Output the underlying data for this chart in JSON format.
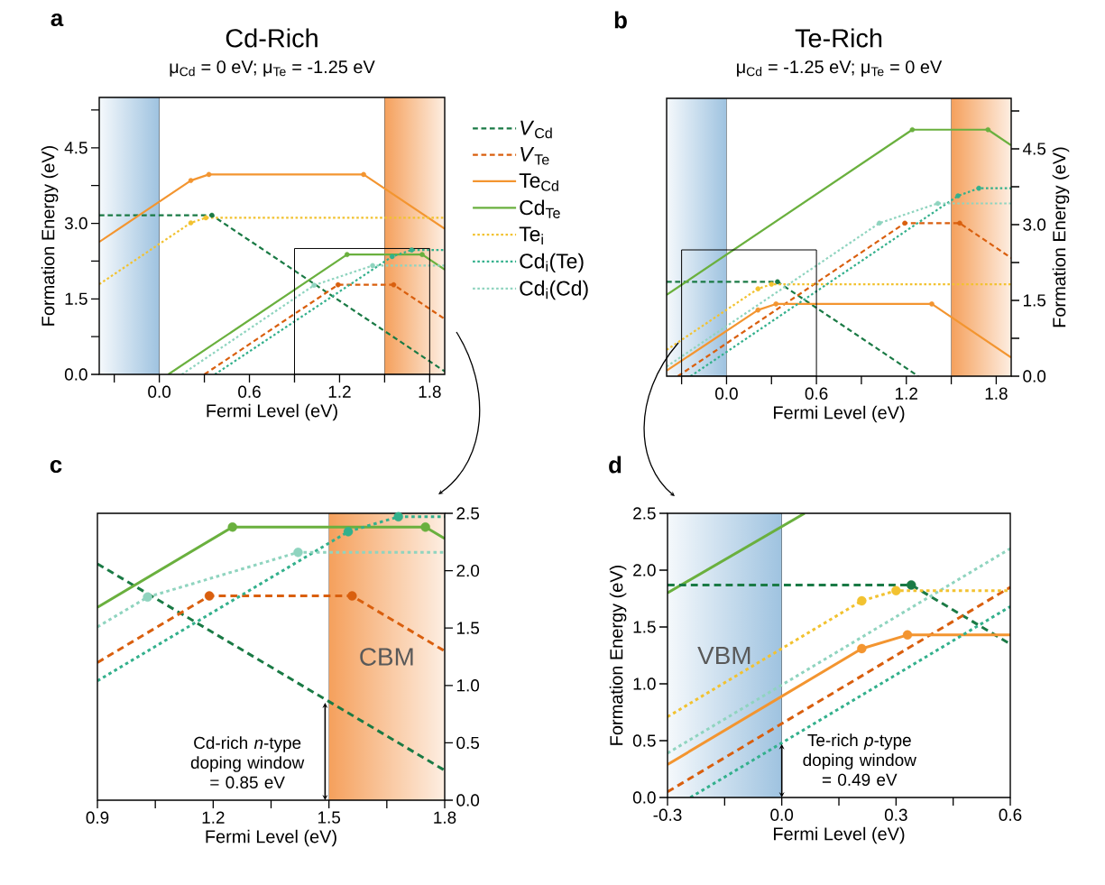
{
  "chart_data": [
    {
      "type": "line",
      "title": "Cd-Rich",
      "subtitle": "μ$_{Cd}$ = 0 eV; μ$_{Te}$ = -1.25 eV",
      "xlabel": "Fermi Level (eV)",
      "ylabel": "Formation Energy (eV)",
      "annotations": [
        "a"
      ],
      "xlim": [
        -0.4,
        1.9
      ],
      "ylim": [
        0,
        5.5
      ],
      "xticks": [
        {
          "value": -0.3,
          "label": null
        },
        {
          "value": 0,
          "label": "0.0"
        },
        {
          "value": 0.3,
          "label": null
        },
        {
          "value": 0.6,
          "label": "0.6"
        },
        {
          "value": 0.9,
          "label": null
        },
        {
          "value": 1.2,
          "label": "1.2"
        },
        {
          "value": 1.5,
          "label": null
        },
        {
          "value": 1.8,
          "label": "1.8"
        }
      ],
      "yticks": [
        {
          "value": 0,
          "label": "0.0"
        },
        {
          "value": 0.75,
          "label": null
        },
        {
          "value": 1.5,
          "label": "1.5"
        },
        {
          "value": 2.25,
          "label": null
        },
        {
          "value": 3,
          "label": "3.0"
        },
        {
          "value": 3.75,
          "label": null
        },
        {
          "value": 4.5,
          "label": "4.5"
        },
        {
          "value": 5.25,
          "label": null
        }
      ],
      "bands": [
        {
          "axis": "x",
          "from": -0.4,
          "to": 0,
          "color": "#9fc3e0"
        },
        {
          "axis": "x",
          "from": 1.5,
          "to": 1.9,
          "color": "#f5a05c"
        }
      ],
      "legend": "right",
      "series": [
        {
          "name": "*V*$_{Cd}$",
          "color": "#1a7a45",
          "line_style": "dashed",
          "x": [
            -0.4,
            0.35,
            1.9
          ],
          "values": [
            3.16,
            3.16,
            0.06
          ]
        },
        {
          "name": "*V*$_{Te}$",
          "color": "#d95f0e",
          "line_style": "dashed",
          "x": [
            0.3,
            1.19,
            1.56,
            1.9
          ],
          "values": [
            0,
            1.78,
            1.78,
            1.1
          ]
        },
        {
          "name": "Te$_{Cd}$",
          "color": "#f39530",
          "line_style": "solid",
          "x": [
            -0.4,
            0.21,
            0.33,
            1.36,
            1.9
          ],
          "values": [
            2.63,
            3.85,
            3.97,
            3.97,
            2.89
          ]
        },
        {
          "name": "Cd$_{Te}$",
          "color": "#6ab03e",
          "line_style": "solid",
          "x": [
            0.06,
            1.25,
            1.75,
            1.9
          ],
          "values": [
            0,
            2.38,
            2.38,
            2.08
          ]
        },
        {
          "name": "Te$_{i}$",
          "color": "#f2c230",
          "line_style": "dotted",
          "x": [
            -0.4,
            0.21,
            0.31,
            1.9
          ],
          "values": [
            1.79,
            3.01,
            3.11,
            3.11
          ]
        },
        {
          "name": "Cd$_{i}$(Te)",
          "color": "#33b08c",
          "line_style": "dotted",
          "x": [
            0.37,
            1.55,
            1.68,
            1.9
          ],
          "values": [
            0,
            2.34,
            2.47,
            2.47
          ]
        },
        {
          "name": "Cd$_{i}$(Cd)",
          "color": "#8fd4bf",
          "line_style": "dotted",
          "x": [
            0.15,
            1.03,
            1.42,
            1.9
          ],
          "values": [
            0,
            1.77,
            2.16,
            2.16
          ]
        },
        {
          "type": "scatter",
          "marker": "circle",
          "x": [
            0.35,
            1.19,
            1.56,
            0.21,
            0.33,
            1.36,
            1.25,
            1.75,
            0.21,
            0.31,
            1.55,
            1.68,
            1.03,
            1.42
          ],
          "values": [
            3.16,
            1.78,
            1.78,
            3.85,
            3.97,
            3.97,
            2.38,
            2.38,
            3.01,
            3.11,
            2.34,
            2.47,
            1.77,
            2.16
          ],
          "colors": [
            "#1a7a45",
            "#d95f0e",
            "#d95f0e",
            "#f39530",
            "#f39530",
            "#f39530",
            "#6ab03e",
            "#6ab03e",
            "#f2c230",
            "#f2c230",
            "#33b08c",
            "#33b08c",
            "#8fd4bf",
            "#8fd4bf"
          ]
        }
      ]
    },
    {
      "type": "line",
      "title": "Te-Rich",
      "subtitle": "μ$_{Cd}$ = -1.25 eV; μ$_{Te}$ = 0 eV",
      "xlabel": "Fermi Level (eV)",
      "ylabel": "Formation Energy (eV)",
      "annotations": [
        "b"
      ],
      "xlim": [
        -0.4,
        1.9
      ],
      "ylim": [
        0,
        5.5
      ],
      "xticks": [
        {
          "value": -0.3,
          "label": null
        },
        {
          "value": 0,
          "label": "0.0"
        },
        {
          "value": 0.3,
          "label": null
        },
        {
          "value": 0.6,
          "label": "0.6"
        },
        {
          "value": 0.9,
          "label": null
        },
        {
          "value": 1.2,
          "label": "1.2"
        },
        {
          "value": 1.5,
          "label": null
        },
        {
          "value": 1.8,
          "label": "1.8"
        }
      ],
      "yticks": [
        {
          "value": 0,
          "label": "0.0"
        },
        {
          "value": 0.75,
          "label": null
        },
        {
          "value": 1.5,
          "label": "1.5"
        },
        {
          "value": 2.25,
          "label": null
        },
        {
          "value": 3,
          "label": "3.0"
        },
        {
          "value": 3.75,
          "label": null
        },
        {
          "value": 4.5,
          "label": "4.5"
        },
        {
          "value": 5.25,
          "label": null
        }
      ],
      "bands": [
        {
          "axis": "x",
          "from": -0.4,
          "to": 0,
          "color": "#9fc3e0"
        },
        {
          "axis": "x",
          "from": 1.5,
          "to": 1.9,
          "color": "#f5a05c"
        }
      ],
      "series": [
        {
          "color": "#1a7a45",
          "line_style": "dashed",
          "x": [
            -0.4,
            0.34,
            1.28
          ],
          "values": [
            1.87,
            1.87,
            0
          ]
        },
        {
          "color": "#d95f0e",
          "line_style": "dashed",
          "x": [
            -0.325,
            1.19,
            1.556,
            1.9
          ],
          "values": [
            0,
            3.03,
            3.03,
            2.34
          ]
        },
        {
          "color": "#f39530",
          "line_style": "solid",
          "x": [
            -0.4,
            0.21,
            0.33,
            1.37,
            1.9
          ],
          "values": [
            0.11,
            1.31,
            1.43,
            1.43,
            0.37
          ]
        },
        {
          "color": "#6ab03e",
          "line_style": "solid",
          "x": [
            -0.4,
            1.24,
            1.745,
            1.9
          ],
          "values": [
            1.61,
            4.88,
            4.88,
            4.57
          ]
        },
        {
          "color": "#f2c230",
          "line_style": "dotted",
          "x": [
            -0.4,
            0.21,
            0.3,
            1.9
          ],
          "values": [
            0.52,
            1.73,
            1.82,
            1.82
          ]
        },
        {
          "color": "#33b08c",
          "line_style": "dotted",
          "x": [
            -0.24,
            1.545,
            1.684,
            1.9
          ],
          "values": [
            0,
            3.57,
            3.72,
            3.72
          ]
        },
        {
          "color": "#8fd4bf",
          "line_style": "dotted",
          "x": [
            -0.4,
            1.02,
            1.41,
            1.9
          ],
          "values": [
            0.19,
            3.03,
            3.42,
            3.42
          ]
        },
        {
          "type": "scatter",
          "marker": "circle",
          "x": [
            0.34,
            1.19,
            1.556,
            0.21,
            0.33,
            1.37,
            1.24,
            1.745,
            0.21,
            0.3,
            1.545,
            1.684,
            1.02,
            1.41
          ],
          "values": [
            1.87,
            3.03,
            3.03,
            1.31,
            1.43,
            1.43,
            4.88,
            4.88,
            1.73,
            1.82,
            3.57,
            3.72,
            3.03,
            3.42
          ],
          "colors": [
            "#1a7a45",
            "#d95f0e",
            "#d95f0e",
            "#f39530",
            "#f39530",
            "#f39530",
            "#6ab03e",
            "#6ab03e",
            "#f2c230",
            "#f2c230",
            "#33b08c",
            "#33b08c",
            "#8fd4bf",
            "#8fd4bf"
          ]
        }
      ]
    },
    {
      "type": "line",
      "annotations": [
        "c",
        {
          "text": "Cd-rich *n*-type doping window = 0.85 eV",
          "x": 1.49,
          "y": 0.85
        }
      ],
      "xlabel": "Fermi Level (eV)",
      "xlim": [
        0.9,
        1.8
      ],
      "ylim": [
        0,
        2.5
      ],
      "xticks": [
        {
          "value": 0.9,
          "label": "0.9"
        },
        {
          "value": 1.05,
          "label": null
        },
        {
          "value": 1.2,
          "label": "1.2"
        },
        {
          "value": 1.35,
          "label": null
        },
        {
          "value": 1.5,
          "label": "1.5"
        },
        {
          "value": 1.65,
          "label": null
        },
        {
          "value": 1.8,
          "label": "1.8"
        }
      ],
      "yticks": [
        {
          "value": 0,
          "label": "0.0"
        },
        {
          "value": 0.5,
          "label": "0.5"
        },
        {
          "value": 1,
          "label": "1.0"
        },
        {
          "value": 1.5,
          "label": "1.5"
        },
        {
          "value": 2,
          "label": "2.0"
        },
        {
          "value": 2.5,
          "label": "2.5"
        }
      ],
      "bands": [
        {
          "axis": "x",
          "from": 1.5,
          "to": 1.8,
          "label": "CBM",
          "color": "#f5a05c"
        }
      ],
      "series": [
        {
          "color": "#1a7a45",
          "line_style": "dashed",
          "x": [
            0.9,
            1.8
          ],
          "values": [
            2.06,
            0.26
          ]
        },
        {
          "color": "#d95f0e",
          "line_style": "dashed",
          "x": [
            0.9,
            1.19,
            1.56,
            1.8
          ],
          "values": [
            1.2,
            1.78,
            1.78,
            1.3
          ]
        },
        {
          "color": "#6ab03e",
          "line_style": "solid",
          "x": [
            0.9,
            1.25,
            1.75,
            1.8
          ],
          "values": [
            1.68,
            2.38,
            2.38,
            2.28
          ]
        },
        {
          "color": "#33b08c",
          "line_style": "dotted",
          "x": [
            0.9,
            1.55,
            1.68,
            1.8
          ],
          "values": [
            1.04,
            2.34,
            2.47,
            2.47
          ]
        },
        {
          "color": "#8fd4bf",
          "line_style": "dotted",
          "x": [
            0.9,
            1.03,
            1.42,
            1.8
          ],
          "values": [
            1.51,
            1.77,
            2.16,
            2.16
          ]
        },
        {
          "type": "scatter",
          "marker": "circle",
          "x": [
            1.19,
            1.56,
            1.25,
            1.75,
            1.55,
            1.68,
            1.03,
            1.42
          ],
          "values": [
            1.78,
            1.78,
            2.38,
            2.38,
            2.34,
            2.47,
            1.77,
            2.16
          ],
          "colors": [
            "#d95f0e",
            "#d95f0e",
            "#6ab03e",
            "#6ab03e",
            "#33b08c",
            "#33b08c",
            "#8fd4bf",
            "#8fd4bf"
          ]
        }
      ]
    },
    {
      "type": "line",
      "annotations": [
        "d",
        {
          "text": "Te-rich *p*-type doping window = 0.49 eV",
          "x": 0.0,
          "y": 0.47
        }
      ],
      "xlabel": "Fermi Level (eV)",
      "ylabel": "Formation Energy (eV)",
      "xlim": [
        -0.3,
        0.6
      ],
      "ylim": [
        0,
        2.5
      ],
      "xticks": [
        {
          "value": -0.3,
          "label": "-0.3"
        },
        {
          "value": -0.15,
          "label": null
        },
        {
          "value": 0,
          "label": "0.0"
        },
        {
          "value": 0.15,
          "label": null
        },
        {
          "value": 0.3,
          "label": "0.3"
        },
        {
          "value": 0.45,
          "label": null
        },
        {
          "value": 0.6,
          "label": "0.6"
        }
      ],
      "yticks": [
        {
          "value": 0,
          "label": "0.0"
        },
        {
          "value": 0.5,
          "label": "0.5"
        },
        {
          "value": 1,
          "label": "1.0"
        },
        {
          "value": 1.5,
          "label": "1.5"
        },
        {
          "value": 2,
          "label": "2.0"
        },
        {
          "value": 2.5,
          "label": "2.5"
        }
      ],
      "bands": [
        {
          "axis": "x",
          "from": -0.3,
          "to": 0,
          "label": "VBM",
          "color": "#9fc3e0"
        }
      ],
      "series": [
        {
          "color": "#6ab03e",
          "line_style": "solid",
          "x": [
            -0.3,
            0.06
          ],
          "values": [
            1.8,
            2.5
          ]
        },
        {
          "color": "#1a7a45",
          "line_style": "dashed",
          "x": [
            -0.3,
            0.34,
            0.6
          ],
          "values": [
            1.87,
            1.87,
            1.35
          ]
        },
        {
          "color": "#d95f0e",
          "line_style": "dashed",
          "x": [
            -0.3,
            0.6
          ],
          "values": [
            0.05,
            1.85
          ]
        },
        {
          "color": "#f39530",
          "line_style": "solid",
          "x": [
            -0.3,
            0.21,
            0.33,
            0.6
          ],
          "values": [
            0.29,
            1.31,
            1.43,
            1.43
          ]
        },
        {
          "color": "#8fd4bf",
          "line_style": "dotted",
          "x": [
            -0.3,
            0.6
          ],
          "values": [
            0.39,
            2.19
          ]
        },
        {
          "color": "#33b08c",
          "line_style": "dotted",
          "x": [
            -0.24,
            0.6
          ],
          "values": [
            0,
            1.68
          ]
        },
        {
          "color": "#f2c230",
          "line_style": "dotted",
          "x": [
            -0.3,
            0.21,
            0.3,
            0.6
          ],
          "values": [
            0.71,
            1.73,
            1.82,
            1.82
          ]
        },
        {
          "type": "scatter",
          "marker": "circle",
          "x": [
            0.34,
            0.21,
            0.33,
            0.21,
            0.3
          ],
          "values": [
            1.87,
            1.31,
            1.43,
            1.73,
            1.82
          ],
          "colors": [
            "#1a7a45",
            "#f39530",
            "#f39530",
            "#f2c230",
            "#f2c230"
          ]
        }
      ]
    }
  ]
}
